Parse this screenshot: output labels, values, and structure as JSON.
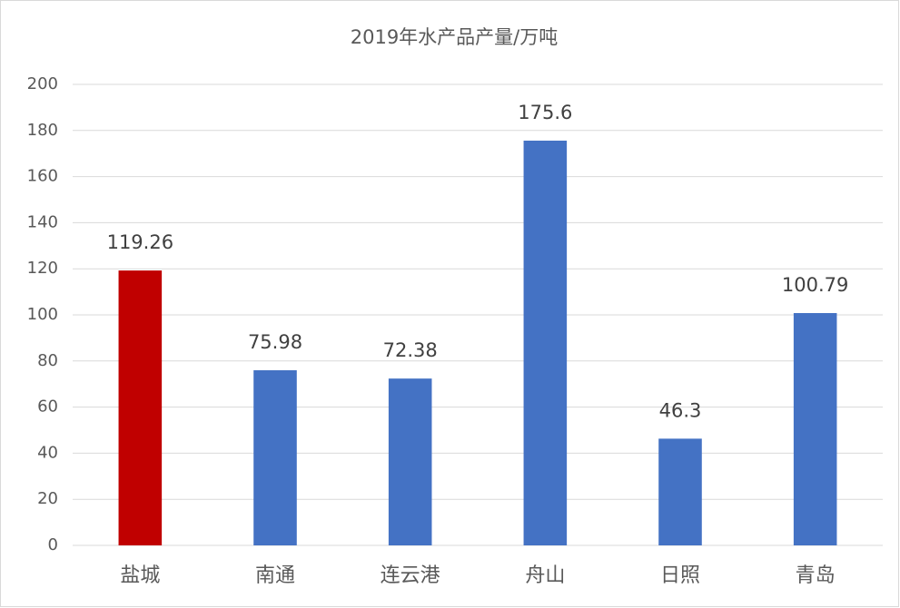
{
  "chart_data": {
    "type": "bar",
    "title": "2019年水产品产量/万吨",
    "categories": [
      "盐城",
      "南通",
      "连云港",
      "舟山",
      "日照",
      "青岛"
    ],
    "values": [
      119.26,
      75.98,
      72.38,
      175.6,
      46.3,
      100.79
    ],
    "colors": [
      "#c00000",
      "#4472c4",
      "#4472c4",
      "#4472c4",
      "#4472c4",
      "#4472c4"
    ],
    "ylim": [
      0,
      200
    ],
    "yticks": [
      0,
      20,
      40,
      60,
      80,
      100,
      120,
      140,
      160,
      180,
      200
    ],
    "grid": true
  }
}
